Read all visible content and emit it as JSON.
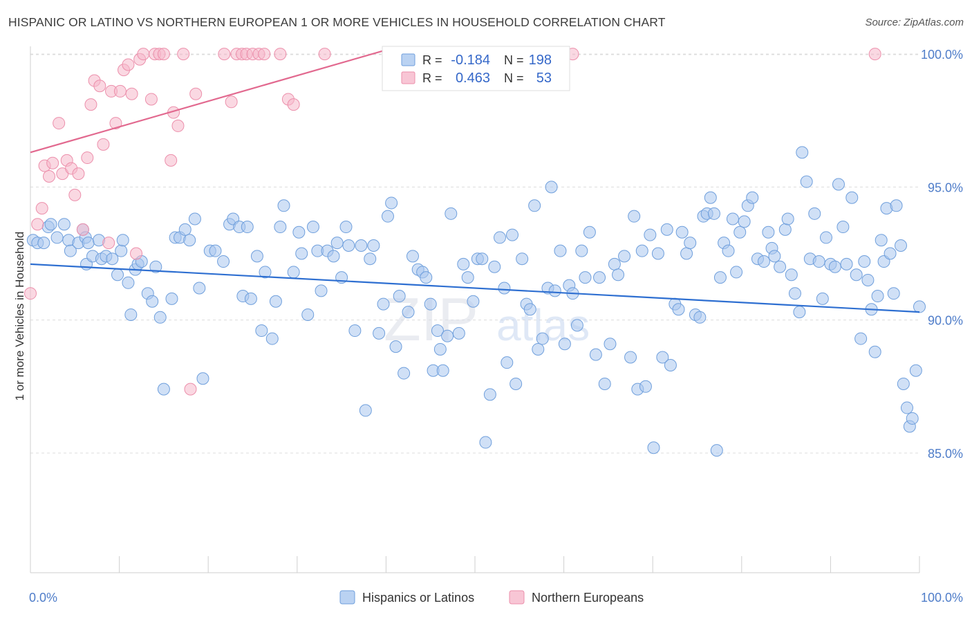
{
  "title": "HISPANIC OR LATINO VS NORTHERN EUROPEAN 1 OR MORE VEHICLES IN HOUSEHOLD CORRELATION CHART",
  "source": "Source: ZipAtlas.com",
  "watermark": {
    "zip": "ZIP",
    "atlas": "atlas"
  },
  "colors": {
    "blue_fill": "#a9c7ef",
    "blue_stroke": "#6f9fdc",
    "blue_line": "#2e6fd1",
    "pink_fill": "#f6b8cb",
    "pink_stroke": "#ec8fab",
    "pink_line": "#e2698f",
    "tick_label": "#4f7dc9"
  },
  "legend_box": {
    "rows": [
      {
        "r_label": "R =",
        "r_value": "-0.184",
        "n_label": "N =",
        "n_value": "198"
      },
      {
        "r_label": "R =",
        "r_value": "0.463",
        "n_label": "N =",
        "n_value": "53"
      }
    ]
  },
  "chart_data": {
    "type": "scatter",
    "title": "HISPANIC OR LATINO VS NORTHERN EUROPEAN 1 OR MORE VEHICLES IN HOUSEHOLD CORRELATION CHART",
    "xlabel": "",
    "ylabel": "1 or more Vehicles in Household",
    "x_tick_labels": [
      "0.0%",
      "100.0%"
    ],
    "y_tick_labels": [
      "85.0%",
      "90.0%",
      "95.0%",
      "100.0%"
    ],
    "y_ticks": [
      85,
      90,
      95,
      100
    ],
    "xlim": [
      0,
      100
    ],
    "ylim": [
      80.5,
      100.6
    ],
    "grid": true,
    "legend_position": "bottom",
    "series": [
      {
        "name": "Hispanics or Latinos",
        "r": -0.184,
        "n": 198,
        "trend": [
          [
            0,
            92.1
          ],
          [
            100,
            90.3
          ]
        ],
        "points": [
          [
            0.3,
            93.0
          ],
          [
            0.8,
            92.9
          ],
          [
            1.5,
            92.9
          ],
          [
            2.0,
            93.5
          ],
          [
            2.3,
            93.6
          ],
          [
            3.0,
            93.1
          ],
          [
            3.8,
            93.6
          ],
          [
            4.3,
            93.0
          ],
          [
            4.5,
            92.6
          ],
          [
            5.4,
            92.9
          ],
          [
            5.9,
            93.4
          ],
          [
            6.2,
            93.1
          ],
          [
            6.3,
            92.1
          ],
          [
            6.5,
            92.9
          ],
          [
            7.0,
            92.4
          ],
          [
            7.7,
            93.0
          ],
          [
            8.0,
            92.3
          ],
          [
            8.5,
            92.4
          ],
          [
            9.2,
            92.3
          ],
          [
            9.8,
            91.7
          ],
          [
            10.2,
            92.6
          ],
          [
            10.4,
            93.0
          ],
          [
            11.0,
            91.4
          ],
          [
            11.3,
            90.2
          ],
          [
            11.8,
            91.9
          ],
          [
            12.1,
            92.1
          ],
          [
            12.5,
            92.2
          ],
          [
            13.2,
            91.0
          ],
          [
            13.7,
            90.7
          ],
          [
            14.1,
            92.0
          ],
          [
            14.6,
            90.1
          ],
          [
            15.0,
            87.4
          ],
          [
            15.9,
            90.8
          ],
          [
            16.3,
            93.1
          ],
          [
            16.8,
            93.1
          ],
          [
            17.4,
            93.4
          ],
          [
            17.9,
            93.0
          ],
          [
            18.5,
            93.8
          ],
          [
            19.0,
            91.2
          ],
          [
            19.4,
            87.8
          ],
          [
            20.2,
            92.6
          ],
          [
            20.8,
            92.6
          ],
          [
            21.7,
            92.2
          ],
          [
            22.4,
            93.6
          ],
          [
            22.8,
            93.8
          ],
          [
            23.5,
            93.5
          ],
          [
            23.9,
            90.9
          ],
          [
            24.4,
            93.5
          ],
          [
            24.8,
            90.8
          ],
          [
            25.5,
            92.4
          ],
          [
            26.0,
            89.6
          ],
          [
            26.4,
            91.8
          ],
          [
            27.2,
            89.3
          ],
          [
            27.6,
            90.7
          ],
          [
            28.1,
            93.5
          ],
          [
            28.5,
            94.3
          ],
          [
            29.6,
            91.8
          ],
          [
            30.2,
            93.3
          ],
          [
            30.5,
            92.5
          ],
          [
            31.2,
            90.2
          ],
          [
            31.8,
            93.5
          ],
          [
            32.3,
            92.6
          ],
          [
            32.7,
            91.1
          ],
          [
            33.4,
            92.6
          ],
          [
            34.1,
            92.4
          ],
          [
            34.5,
            92.9
          ],
          [
            35.0,
            91.6
          ],
          [
            35.5,
            93.5
          ],
          [
            35.8,
            92.8
          ],
          [
            36.5,
            89.6
          ],
          [
            37.2,
            92.8
          ],
          [
            37.7,
            86.6
          ],
          [
            38.2,
            92.3
          ],
          [
            38.6,
            92.8
          ],
          [
            39.2,
            89.5
          ],
          [
            39.7,
            90.6
          ],
          [
            40.2,
            93.9
          ],
          [
            40.6,
            94.4
          ],
          [
            41.1,
            89.0
          ],
          [
            41.5,
            90.9
          ],
          [
            42.0,
            88.0
          ],
          [
            42.5,
            90.3
          ],
          [
            43.0,
            92.4
          ],
          [
            43.6,
            91.9
          ],
          [
            44.1,
            91.8
          ],
          [
            44.5,
            91.6
          ],
          [
            45.0,
            90.6
          ],
          [
            45.3,
            88.1
          ],
          [
            45.8,
            89.6
          ],
          [
            46.1,
            88.9
          ],
          [
            46.4,
            88.1
          ],
          [
            46.9,
            89.4
          ],
          [
            47.3,
            94.0
          ],
          [
            48.2,
            89.5
          ],
          [
            48.7,
            92.1
          ],
          [
            49.2,
            91.6
          ],
          [
            49.8,
            90.7
          ],
          [
            50.3,
            92.3
          ],
          [
            50.8,
            92.3
          ],
          [
            51.2,
            85.4
          ],
          [
            51.7,
            87.2
          ],
          [
            52.2,
            92.0
          ],
          [
            52.8,
            93.1
          ],
          [
            53.3,
            91.2
          ],
          [
            53.6,
            88.4
          ],
          [
            54.2,
            93.2
          ],
          [
            54.6,
            87.6
          ],
          [
            55.3,
            92.3
          ],
          [
            55.8,
            90.6
          ],
          [
            56.2,
            90.4
          ],
          [
            56.7,
            94.3
          ],
          [
            57.1,
            88.9
          ],
          [
            57.6,
            89.3
          ],
          [
            58.2,
            91.2
          ],
          [
            58.6,
            95.0
          ],
          [
            59.0,
            91.1
          ],
          [
            59.6,
            92.6
          ],
          [
            60.1,
            89.1
          ],
          [
            60.6,
            91.3
          ],
          [
            61.0,
            91.0
          ],
          [
            61.5,
            89.8
          ],
          [
            62.0,
            92.6
          ],
          [
            62.4,
            91.6
          ],
          [
            62.9,
            93.3
          ],
          [
            63.6,
            88.7
          ],
          [
            64.0,
            91.6
          ],
          [
            64.6,
            87.6
          ],
          [
            65.2,
            89.1
          ],
          [
            65.7,
            92.1
          ],
          [
            66.1,
            91.7
          ],
          [
            66.8,
            92.4
          ],
          [
            67.5,
            88.6
          ],
          [
            67.9,
            93.9
          ],
          [
            68.3,
            87.4
          ],
          [
            68.8,
            92.6
          ],
          [
            69.2,
            87.5
          ],
          [
            69.7,
            93.2
          ],
          [
            70.1,
            85.2
          ],
          [
            70.6,
            92.5
          ],
          [
            71.1,
            88.6
          ],
          [
            71.6,
            93.4
          ],
          [
            72.0,
            88.3
          ],
          [
            72.5,
            90.6
          ],
          [
            72.9,
            90.4
          ],
          [
            73.3,
            93.3
          ],
          [
            73.8,
            92.5
          ],
          [
            74.2,
            92.9
          ],
          [
            74.8,
            90.2
          ],
          [
            75.3,
            90.1
          ],
          [
            75.7,
            93.9
          ],
          [
            76.1,
            94.0
          ],
          [
            76.5,
            94.6
          ],
          [
            76.9,
            94.0
          ],
          [
            77.2,
            85.1
          ],
          [
            77.6,
            91.6
          ],
          [
            78.0,
            92.9
          ],
          [
            78.5,
            92.6
          ],
          [
            79.0,
            93.8
          ],
          [
            79.4,
            91.8
          ],
          [
            79.8,
            93.3
          ],
          [
            80.3,
            93.7
          ],
          [
            80.7,
            94.3
          ],
          [
            81.2,
            94.6
          ],
          [
            81.8,
            92.3
          ],
          [
            82.5,
            92.2
          ],
          [
            83.0,
            93.3
          ],
          [
            83.4,
            92.7
          ],
          [
            83.7,
            92.4
          ],
          [
            84.3,
            92.0
          ],
          [
            84.9,
            93.4
          ],
          [
            85.2,
            93.8
          ],
          [
            85.6,
            91.7
          ],
          [
            86.0,
            91.0
          ],
          [
            86.5,
            90.3
          ],
          [
            86.8,
            96.3
          ],
          [
            87.3,
            95.2
          ],
          [
            87.7,
            92.3
          ],
          [
            88.2,
            94.0
          ],
          [
            88.7,
            92.2
          ],
          [
            89.1,
            90.8
          ],
          [
            89.5,
            93.1
          ],
          [
            90.0,
            92.1
          ],
          [
            90.5,
            92.0
          ],
          [
            90.9,
            95.1
          ],
          [
            91.4,
            93.5
          ],
          [
            91.8,
            92.1
          ],
          [
            92.4,
            94.6
          ],
          [
            92.9,
            91.7
          ],
          [
            93.4,
            89.3
          ],
          [
            93.8,
            92.2
          ],
          [
            94.2,
            91.5
          ],
          [
            94.6,
            90.4
          ],
          [
            95.0,
            88.8
          ],
          [
            95.3,
            90.9
          ],
          [
            95.7,
            93.0
          ],
          [
            96.0,
            92.2
          ],
          [
            96.3,
            94.2
          ],
          [
            96.7,
            92.5
          ],
          [
            97.1,
            91.0
          ],
          [
            97.4,
            94.3
          ],
          [
            97.9,
            92.8
          ],
          [
            98.2,
            87.6
          ],
          [
            98.6,
            86.7
          ],
          [
            98.9,
            86.0
          ],
          [
            99.2,
            86.3
          ],
          [
            99.6,
            88.1
          ],
          [
            100.0,
            90.5
          ]
        ]
      },
      {
        "name": "Northern Europeans",
        "r": 0.463,
        "n": 53,
        "trend": [
          [
            0,
            96.3
          ],
          [
            40.5,
            100.2
          ]
        ],
        "points": [
          [
            0.0,
            91.0
          ],
          [
            0.8,
            93.6
          ],
          [
            1.3,
            94.2
          ],
          [
            1.6,
            95.8
          ],
          [
            2.1,
            95.4
          ],
          [
            2.5,
            95.9
          ],
          [
            3.2,
            97.4
          ],
          [
            3.6,
            95.5
          ],
          [
            4.1,
            96.0
          ],
          [
            4.6,
            95.7
          ],
          [
            5.0,
            94.7
          ],
          [
            5.4,
            95.5
          ],
          [
            5.9,
            93.4
          ],
          [
            6.4,
            96.1
          ],
          [
            6.8,
            98.1
          ],
          [
            7.2,
            99.0
          ],
          [
            7.8,
            98.8
          ],
          [
            8.2,
            96.6
          ],
          [
            8.8,
            92.9
          ],
          [
            9.1,
            98.6
          ],
          [
            9.6,
            97.4
          ],
          [
            10.1,
            98.6
          ],
          [
            10.5,
            99.4
          ],
          [
            11.0,
            99.6
          ],
          [
            11.4,
            98.5
          ],
          [
            11.9,
            92.5
          ],
          [
            12.3,
            99.8
          ],
          [
            12.7,
            100.0
          ],
          [
            13.6,
            98.3
          ],
          [
            14.0,
            100.0
          ],
          [
            14.5,
            100.0
          ],
          [
            15.0,
            100.0
          ],
          [
            15.8,
            96.0
          ],
          [
            16.1,
            97.8
          ],
          [
            16.6,
            97.3
          ],
          [
            17.2,
            100.0
          ],
          [
            18.0,
            87.4
          ],
          [
            18.6,
            98.5
          ],
          [
            21.8,
            100.0
          ],
          [
            22.6,
            98.2
          ],
          [
            23.2,
            100.0
          ],
          [
            23.8,
            100.0
          ],
          [
            24.3,
            100.0
          ],
          [
            25.0,
            100.0
          ],
          [
            25.7,
            100.0
          ],
          [
            26.3,
            100.0
          ],
          [
            28.1,
            100.0
          ],
          [
            29.0,
            98.3
          ],
          [
            29.6,
            98.1
          ],
          [
            33.1,
            100.0
          ],
          [
            40.5,
            100.0
          ],
          [
            61.0,
            100.0
          ],
          [
            95.0,
            100.0
          ]
        ]
      }
    ]
  }
}
